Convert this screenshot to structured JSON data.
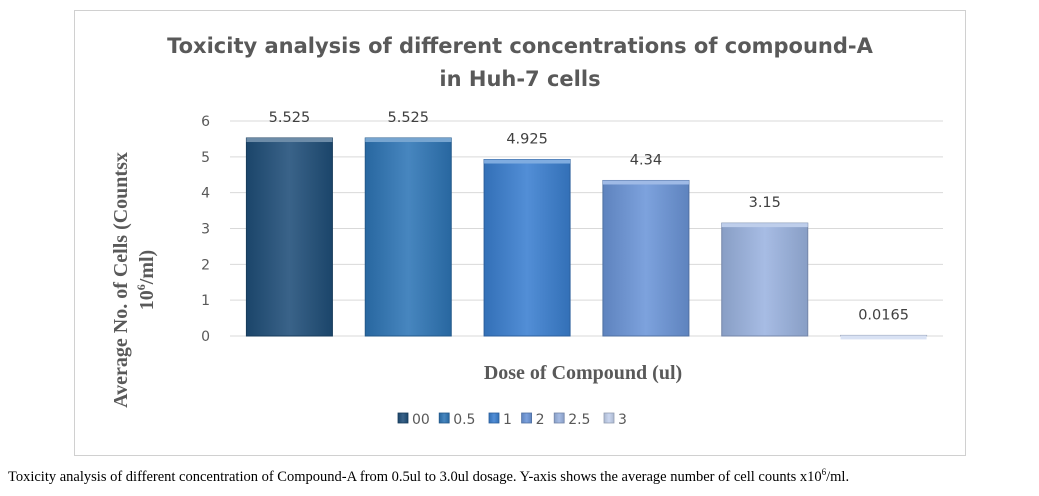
{
  "chart_data": {
    "type": "bar",
    "title": "Toxicity analysis of different concentrations of compound-A in Huh-7 cells",
    "title_lines": [
      "Toxicity analysis of different concentrations of compound-A",
      "in Huh-7 cells"
    ],
    "xlabel": "Dose of Compound (ul)",
    "ylabel": "Average No. of Cells (Countsx 10^6/ml)",
    "ylabel_lines": [
      "Average No. of Cells (Countsx",
      "10",
      "6",
      "/ml)"
    ],
    "ylim": [
      0,
      6
    ],
    "yticks": [
      "0",
      "1",
      "2",
      "3",
      "4",
      "5",
      "6"
    ],
    "grid": true,
    "legend_position": "bottom",
    "categories": [
      "00",
      "0.5",
      "1",
      "2",
      "2.5",
      "3"
    ],
    "values": [
      5.525,
      5.525,
      4.925,
      4.34,
      3.15,
      0.0165
    ],
    "data_labels": [
      "5.525",
      "5.525",
      "4.925",
      "4.34",
      "3.15",
      "0.0165"
    ],
    "colors": [
      "#1f4e79",
      "#2e75b6",
      "#3a7fd0",
      "#6b95d8",
      "#9bb3e0",
      "#c4d2ee"
    ]
  },
  "caption": {
    "before": "Toxicity analysis of different concentration of Compound-A from 0.5ul to 3.0ul dosage. Y-axis shows the average number of cell counts x10",
    "sup": "6",
    "after": "/ml."
  }
}
